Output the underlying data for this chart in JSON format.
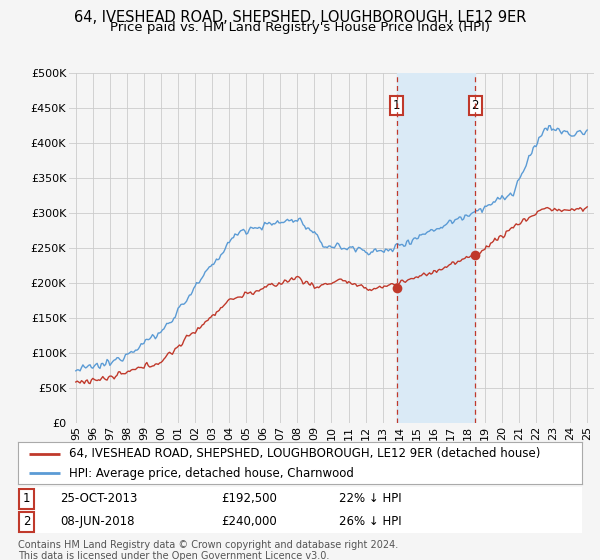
{
  "title": "64, IVESHEAD ROAD, SHEPSHED, LOUGHBOROUGH, LE12 9ER",
  "subtitle": "Price paid vs. HM Land Registry's House Price Index (HPI)",
  "ylim": [
    0,
    500000
  ],
  "yticks": [
    0,
    50000,
    100000,
    150000,
    200000,
    250000,
    300000,
    350000,
    400000,
    450000,
    500000
  ],
  "ytick_labels": [
    "£0",
    "£50K",
    "£100K",
    "£150K",
    "£200K",
    "£250K",
    "£300K",
    "£350K",
    "£400K",
    "£450K",
    "£500K"
  ],
  "sale1_date": 2013.82,
  "sale1_price": 192500,
  "sale2_date": 2018.44,
  "sale2_price": 240000,
  "hpi_color": "#5b9bd5",
  "price_color": "#c0392b",
  "shade_color": "#daeaf6",
  "background_color": "#f5f5f5",
  "plot_bg_color": "#f5f5f5",
  "grid_color": "#cccccc",
  "legend_label_price": "64, IVESHEAD ROAD, SHEPSHED, LOUGHBOROUGH, LE12 9ER (detached house)",
  "legend_label_hpi": "HPI: Average price, detached house, Charnwood",
  "footer": "Contains HM Land Registry data © Crown copyright and database right 2024.\nThis data is licensed under the Open Government Licence v3.0.",
  "title_fontsize": 10.5,
  "subtitle_fontsize": 9.5,
  "tick_fontsize": 8,
  "legend_fontsize": 8.5,
  "ann_fontsize": 8.5
}
